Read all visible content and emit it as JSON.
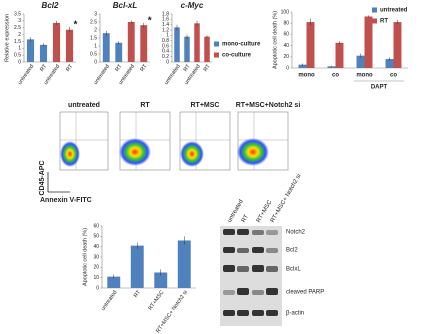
{
  "chart_data": [
    {
      "type": "bar",
      "title": "Bcl2",
      "ylabel": "Relative expression",
      "annotation": "*",
      "categories": [
        "untreated",
        "RT",
        "untreated",
        "RT"
      ],
      "series": [
        {
          "name": "mono-culture",
          "color": "#4f81bd",
          "values": [
            1.65,
            1.25,
            null,
            null
          ],
          "errors": [
            0.15,
            0.1,
            null,
            null
          ]
        },
        {
          "name": "co-culture",
          "color": "#c0504d",
          "values": [
            null,
            null,
            2.85,
            2.35
          ],
          "errors": [
            null,
            null,
            0.15,
            0.2
          ]
        }
      ],
      "ylim": [
        0,
        3.5
      ],
      "yticks": [
        0,
        0.5,
        1,
        1.5,
        2,
        2.5,
        3,
        3.5
      ]
    },
    {
      "type": "bar",
      "title": "Bcl-xL",
      "annotation": "*",
      "categories": [
        "untreated",
        "RT",
        "untreated",
        "RT"
      ],
      "series": [
        {
          "color": "#4f81bd",
          "values": [
            1.8,
            1.2,
            null,
            null
          ],
          "errors": [
            0.15,
            0.1,
            null,
            null
          ]
        },
        {
          "color": "#c0504d",
          "values": [
            null,
            null,
            2.5,
            2.3
          ],
          "errors": [
            null,
            null,
            0.1,
            0.15
          ]
        }
      ],
      "ylim": [
        0,
        3
      ],
      "yticks": [
        0,
        0.5,
        1,
        1.5,
        2,
        2.5,
        3
      ]
    },
    {
      "type": "bar",
      "title": "c-Myc",
      "categories": [
        "untreated",
        "RT",
        "untreated",
        "RT"
      ],
      "series": [
        {
          "color": "#4f81bd",
          "values": [
            1.3,
            0.95,
            null,
            null
          ],
          "errors": [
            0.1,
            0.08,
            null,
            null
          ]
        },
        {
          "color": "#c0504d",
          "values": [
            null,
            null,
            1.45,
            0.95
          ],
          "errors": [
            null,
            null,
            0.1,
            0.05
          ]
        }
      ],
      "ylim": [
        0,
        1.8
      ],
      "yticks": [
        0,
        0.2,
        0.4,
        0.6,
        0.8,
        1,
        1.2,
        1.4,
        1.6,
        1.8
      ]
    },
    {
      "type": "bar",
      "ylabel": "Apoptotic cell death (%)",
      "group_label": "DAPT",
      "categories": [
        "mono",
        "co",
        "mono",
        "co"
      ],
      "series": [
        {
          "name": "untreated",
          "color": "#4f81bd",
          "values": [
            6,
            3,
            22,
            16
          ],
          "errors": [
            2,
            1,
            4,
            3
          ]
        },
        {
          "name": "RT",
          "color": "#c0504d",
          "values": [
            82,
            45,
            92,
            82
          ],
          "errors": [
            6,
            3,
            2,
            4
          ]
        }
      ],
      "ylim": [
        0,
        100
      ],
      "yticks": [
        0,
        20,
        40,
        60,
        80,
        100
      ]
    },
    {
      "type": "bar",
      "ylabel": "Apoptotic cell death (%)",
      "categories": [
        "untreated",
        "RT",
        "RT+MSC",
        "RT+MSC+ Notch2 si"
      ],
      "series": [
        {
          "color": "#4f81bd",
          "values": [
            11,
            41,
            15,
            46
          ],
          "errors": [
            2,
            3,
            3,
            4
          ]
        }
      ],
      "ylim": [
        0,
        60
      ],
      "yticks": [
        0,
        10,
        20,
        30,
        40,
        50,
        60
      ]
    }
  ],
  "flow": {
    "panels": [
      "untreated",
      "RT",
      "RT+MSC",
      "RT+MSC+Notch2 si"
    ],
    "ylabel": "CD45-APC",
    "xlabel": "Annexin V-FITC"
  },
  "blot": {
    "lanes": [
      "untreated",
      "RT",
      "RT+MSC",
      "RT+MSC+ Notch2 si"
    ],
    "rows": [
      "Notch2",
      "Bcl2",
      "BclxL",
      "cleaved PARP",
      "β-actin"
    ]
  }
}
